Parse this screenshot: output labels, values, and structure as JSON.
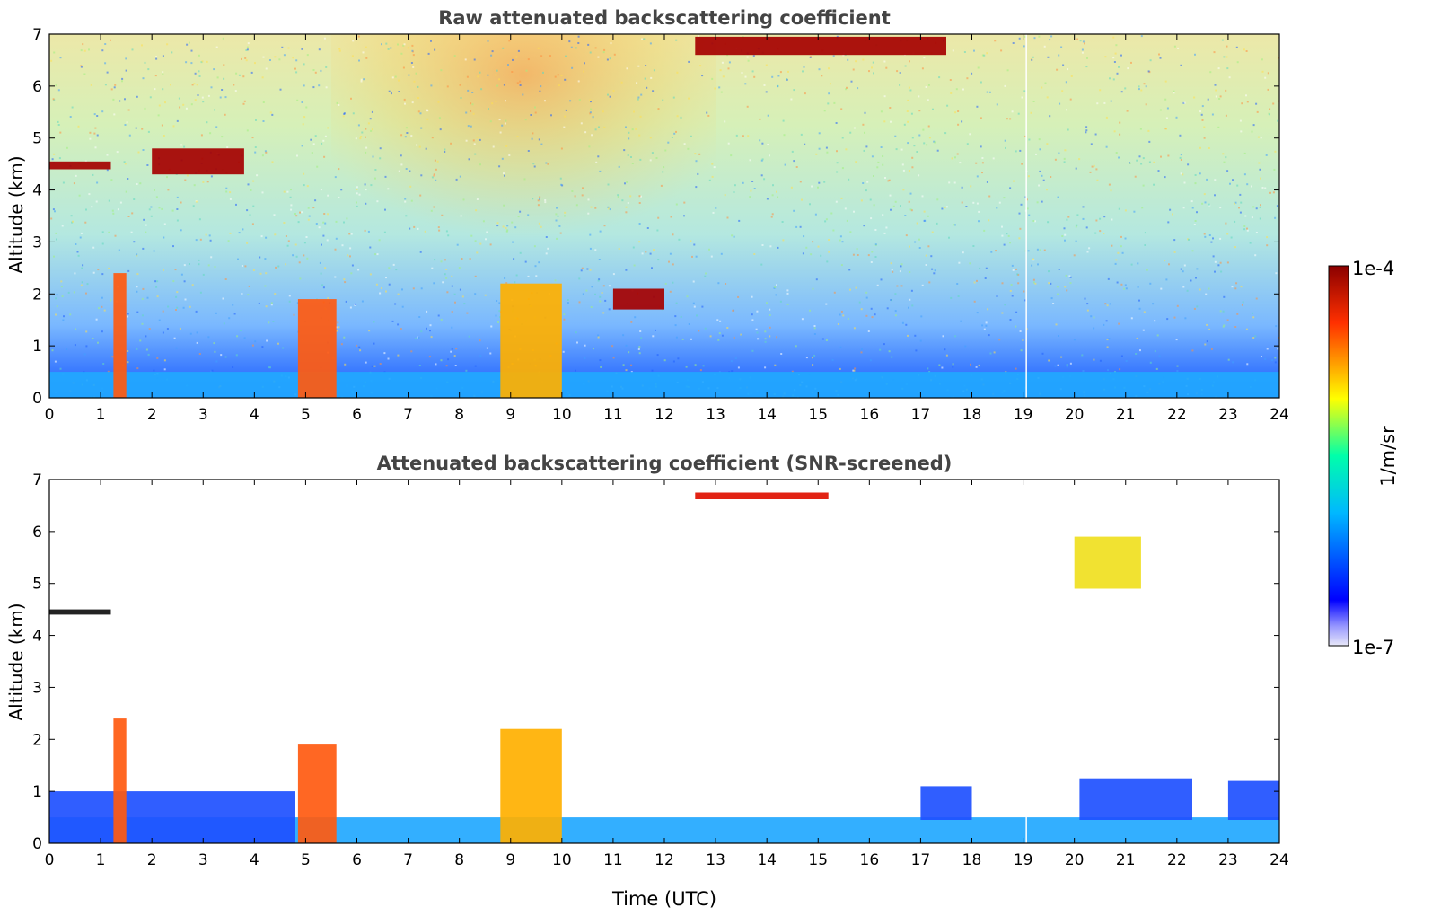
{
  "chart_data": [
    {
      "type": "heatmap",
      "title": "Raw attenuated backscattering coefficient",
      "xlabel": "",
      "ylabel": "Altitude (km)",
      "xlim": [
        0,
        24
      ],
      "ylim": [
        0,
        7
      ],
      "xticks": [
        "0",
        "1",
        "2",
        "3",
        "4",
        "5",
        "6",
        "7",
        "8",
        "9",
        "10",
        "11",
        "12",
        "13",
        "14",
        "15",
        "16",
        "17",
        "18",
        "19",
        "20",
        "21",
        "22",
        "23",
        "24"
      ],
      "yticks": [
        "0",
        "1",
        "2",
        "3",
        "4",
        "5",
        "6",
        "7"
      ],
      "grid": false,
      "background_noise": "noisy high-altitude signal, blue near surface transitioning to green/yellow/orange aloft, strongest orange-red noise around 6-12 UTC",
      "features": [
        {
          "t0": 0.0,
          "t1": 24.0,
          "z0": 0.0,
          "z1": 0.5,
          "level": "blue-cyan",
          "desc": "boundary layer"
        },
        {
          "t0": 1.25,
          "t1": 1.5,
          "z0": 0.0,
          "z1": 2.4,
          "level": "orange-red",
          "desc": "column"
        },
        {
          "t0": 4.85,
          "t1": 5.6,
          "z0": 0.0,
          "z1": 1.9,
          "level": "orange-red",
          "desc": "column"
        },
        {
          "t0": 8.8,
          "t1": 10.0,
          "z0": 0.0,
          "z1": 2.2,
          "level": "yellow-red",
          "desc": "columns"
        },
        {
          "t0": 0.0,
          "t1": 1.2,
          "z0": 4.4,
          "z1": 4.55,
          "level": "dark-red",
          "desc": "cloud layer"
        },
        {
          "t0": 2.0,
          "t1": 3.8,
          "z0": 4.3,
          "z1": 4.8,
          "level": "dark-red",
          "desc": "cloud layer"
        },
        {
          "t0": 12.6,
          "t1": 17.5,
          "z0": 6.6,
          "z1": 6.95,
          "level": "dark-red",
          "desc": "high cloud"
        },
        {
          "t0": 11.0,
          "t1": 12.0,
          "z0": 1.7,
          "z1": 2.1,
          "level": "dark-red",
          "desc": "cloud patch"
        }
      ]
    },
    {
      "type": "heatmap",
      "title": "Attenuated backscattering coefficient (SNR-screened)",
      "xlabel": "Time (UTC)",
      "ylabel": "Altitude (km)",
      "xlim": [
        0,
        24
      ],
      "ylim": [
        0,
        7
      ],
      "xticks": [
        "0",
        "1",
        "2",
        "3",
        "4",
        "5",
        "6",
        "7",
        "8",
        "9",
        "10",
        "11",
        "12",
        "13",
        "14",
        "15",
        "16",
        "17",
        "18",
        "19",
        "20",
        "21",
        "22",
        "23",
        "24"
      ],
      "yticks": [
        "0",
        "1",
        "2",
        "3",
        "4",
        "5",
        "6",
        "7"
      ],
      "grid": false,
      "background": "white (screened out)",
      "features": [
        {
          "t0": 0.0,
          "t1": 24.0,
          "z0": 0.0,
          "z1": 0.5,
          "level": "blue-cyan",
          "desc": "boundary layer"
        },
        {
          "t0": 0.0,
          "t1": 4.8,
          "z0": 0.0,
          "z1": 1.0,
          "level": "blue",
          "desc": "mixed layer"
        },
        {
          "t0": 1.25,
          "t1": 1.5,
          "z0": 0.0,
          "z1": 2.4,
          "level": "orange-red",
          "desc": "column"
        },
        {
          "t0": 4.85,
          "t1": 5.6,
          "z0": 0.0,
          "z1": 1.9,
          "level": "orange-red",
          "desc": "column"
        },
        {
          "t0": 8.8,
          "t1": 10.0,
          "z0": 0.0,
          "z1": 2.2,
          "level": "yellow-red",
          "desc": "columns"
        },
        {
          "t0": 17.0,
          "t1": 18.0,
          "z0": 0.45,
          "z1": 1.1,
          "level": "blue",
          "desc": "layer"
        },
        {
          "t0": 20.1,
          "t1": 22.3,
          "z0": 0.45,
          "z1": 1.25,
          "level": "blue",
          "desc": "layer"
        },
        {
          "t0": 23.0,
          "t1": 24.0,
          "z0": 0.45,
          "z1": 1.2,
          "level": "blue",
          "desc": "layer"
        },
        {
          "t0": 0.0,
          "t1": 1.2,
          "z0": 4.4,
          "z1": 4.5,
          "level": "black",
          "desc": "cloud layer"
        },
        {
          "t0": 12.6,
          "t1": 15.2,
          "z0": 6.62,
          "z1": 6.75,
          "level": "red",
          "desc": "high cloud"
        },
        {
          "t0": 20.0,
          "t1": 21.3,
          "z0": 4.9,
          "z1": 5.9,
          "level": "yellow",
          "desc": "cirrus streak"
        }
      ]
    }
  ],
  "colorbar": {
    "label": "1/m/sr",
    "max_label": "1e-4",
    "min_label": "1e-7",
    "colormap": "jet",
    "colors": [
      "#e8e8f8",
      "#0000ff",
      "#00c8ff",
      "#00ff80",
      "#ffff00",
      "#ff6000",
      "#8b0000"
    ]
  }
}
